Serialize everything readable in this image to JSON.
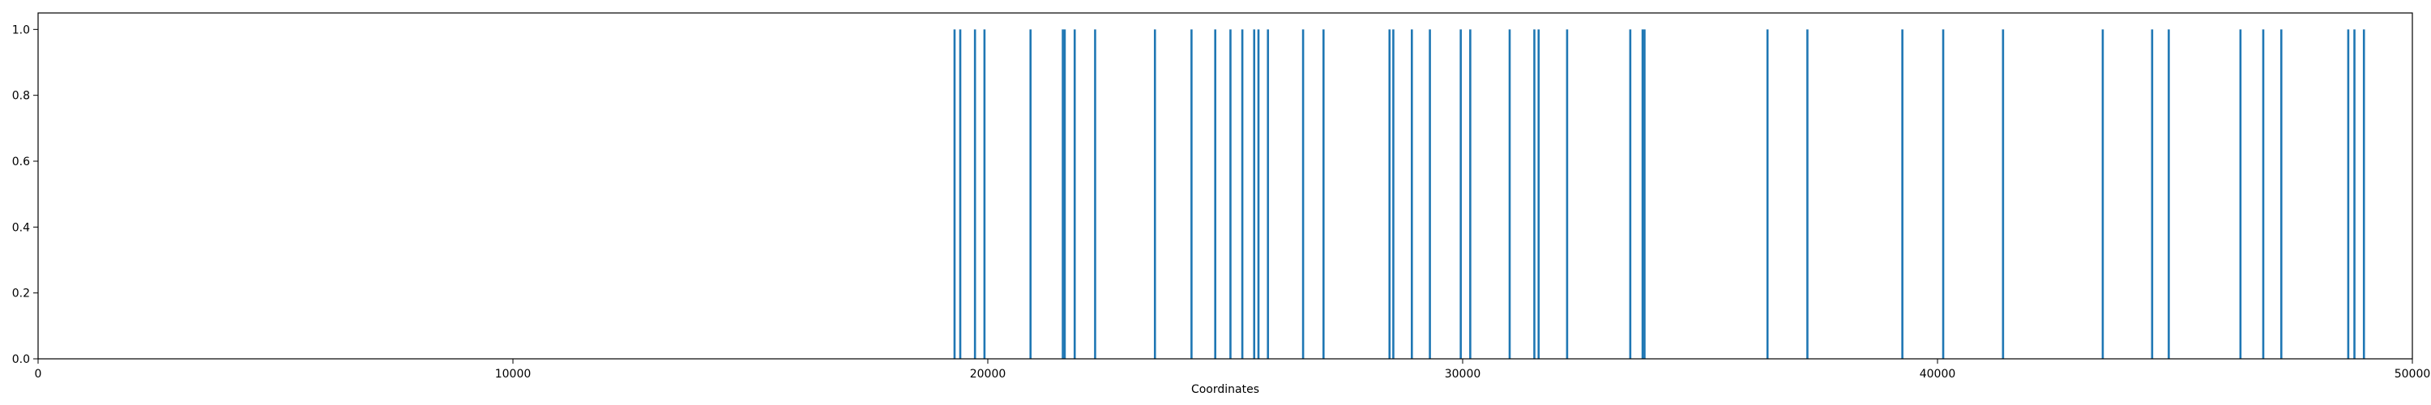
{
  "chart_data": {
    "type": "bar",
    "xlabel": "Coordinates",
    "ylabel": "",
    "title": "",
    "xlim": [
      0,
      50000
    ],
    "ylim": [
      0,
      1.05
    ],
    "x_ticks": [
      0,
      10000,
      20000,
      30000,
      40000,
      50000
    ],
    "x_tick_labels": [
      "0",
      "10000",
      "20000",
      "30000",
      "40000",
      "50000"
    ],
    "y_ticks": [
      0.0,
      0.2,
      0.4,
      0.6,
      0.8,
      1.0
    ],
    "y_tick_labels": [
      "0.0",
      "0.2",
      "0.4",
      "0.6",
      "0.8",
      "1.0"
    ],
    "grid": false,
    "color": "#1f77b4",
    "x": [
      19300,
      19420,
      19730,
      19930,
      20900,
      21580,
      21620,
      21830,
      22260,
      23520,
      24290,
      24790,
      25110,
      25360,
      25610,
      25700,
      25900,
      26640,
      27070,
      28460,
      28540,
      28930,
      29310,
      29960,
      30160,
      30990,
      31510,
      31600,
      32200,
      33530,
      33790,
      33830,
      36420,
      37260,
      39260,
      40120,
      41380,
      43480,
      44520,
      44870,
      46380,
      46860,
      47240,
      48650,
      48780,
      48980
    ],
    "values": [
      1,
      1,
      1,
      1,
      1,
      1,
      1,
      1,
      1,
      1,
      1,
      1,
      1,
      1,
      1,
      1,
      1,
      1,
      1,
      1,
      1,
      1,
      1,
      1,
      1,
      1,
      1,
      1,
      1,
      1,
      1,
      1,
      1,
      1,
      1,
      1,
      1,
      1,
      1,
      1,
      1,
      1,
      1,
      1,
      1,
      1
    ]
  }
}
